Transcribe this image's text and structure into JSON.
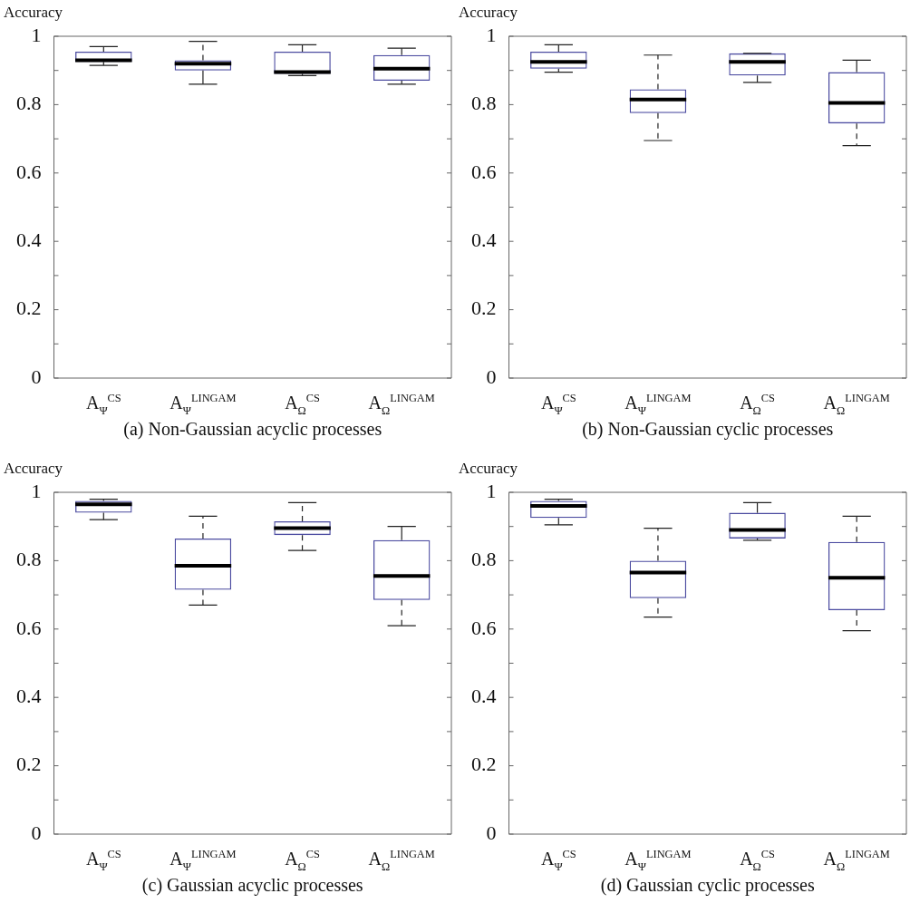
{
  "chart_data": [
    {
      "type": "box",
      "ylabel": "Accuracy",
      "xlabel": "(a) Non-Gaussian acyclic processes",
      "categories": [
        "A$_{Ψ}$$^{CS}$",
        "A$_{Ψ}$$^{LINGAM}$",
        "A$_{Ω}$$^{CS}$",
        "A$_{Ω}$$^{LINGAM}$"
      ],
      "color": "#4b4ba0",
      "ylim": [
        0,
        1
      ],
      "yticks": [
        0,
        {
          "value": 0.1,
          "label": null
        },
        0.2,
        {
          "value": 0.3,
          "label": null
        },
        0.4,
        {
          "value": 0.5,
          "label": null
        },
        0.6,
        {
          "value": 0.7,
          "label": null
        },
        0.8,
        {
          "value": 0.9,
          "label": null
        },
        1
      ],
      "grid": false,
      "boxes": [
        {
          "low": 0.915,
          "q1": 0.925,
          "median": 0.93,
          "q3": 0.955,
          "high": 0.97
        },
        {
          "low": 0.86,
          "q1": 0.9,
          "median": 0.92,
          "q3": 0.93,
          "high": 0.985
        },
        {
          "low": 0.885,
          "q1": 0.89,
          "median": 0.895,
          "q3": 0.955,
          "high": 0.975
        },
        {
          "low": 0.86,
          "q1": 0.87,
          "median": 0.905,
          "q3": 0.945,
          "high": 0.965
        }
      ]
    },
    {
      "type": "box",
      "ylabel": "Accuracy",
      "xlabel": "(b) Non-Gaussian cyclic processes",
      "categories": [
        "A$_{Ψ}$$^{CS}$",
        "A$_{Ψ}$$^{LINGAM}$",
        "A$_{Ω}$$^{CS}$",
        "A$_{Ω}$$^{LINGAM}$"
      ],
      "color": "#4b4ba0",
      "ylim": [
        0,
        1
      ],
      "yticks": [
        0,
        {
          "value": 0.1,
          "label": null
        },
        0.2,
        {
          "value": 0.3,
          "label": null
        },
        0.4,
        {
          "value": 0.5,
          "label": null
        },
        0.6,
        {
          "value": 0.7,
          "label": null
        },
        0.8,
        {
          "value": 0.9,
          "label": null
        },
        1
      ],
      "grid": false,
      "boxes": [
        {
          "low": 0.895,
          "q1": 0.905,
          "median": 0.925,
          "q3": 0.955,
          "high": 0.975
        },
        {
          "low": 0.695,
          "q1": 0.775,
          "median": 0.815,
          "q3": 0.845,
          "high": 0.945
        },
        {
          "low": 0.865,
          "q1": 0.885,
          "median": 0.925,
          "q3": 0.95,
          "high": 0.95
        },
        {
          "low": 0.68,
          "q1": 0.745,
          "median": 0.805,
          "q3": 0.895,
          "high": 0.93
        }
      ]
    },
    {
      "type": "box",
      "ylabel": "Accuracy",
      "xlabel": "(c) Gaussian acyclic processes",
      "categories": [
        "A$_{Ψ}$$^{CS}$",
        "A$_{Ψ}$$^{LINGAM}$",
        "A$_{Ω}$$^{CS}$",
        "A$_{Ω}$$^{LINGAM}$"
      ],
      "color": "#4b4ba0",
      "ylim": [
        0,
        1
      ],
      "yticks": [
        0,
        {
          "value": 0.1,
          "label": null
        },
        0.2,
        {
          "value": 0.3,
          "label": null
        },
        0.4,
        {
          "value": 0.5,
          "label": null
        },
        0.6,
        {
          "value": 0.7,
          "label": null
        },
        0.8,
        {
          "value": 0.9,
          "label": null
        },
        1
      ],
      "grid": false,
      "boxes": [
        {
          "low": 0.92,
          "q1": 0.94,
          "median": 0.965,
          "q3": 0.975,
          "high": 0.98
        },
        {
          "low": 0.67,
          "q1": 0.715,
          "median": 0.785,
          "q3": 0.865,
          "high": 0.93
        },
        {
          "low": 0.83,
          "q1": 0.875,
          "median": 0.895,
          "q3": 0.915,
          "high": 0.97
        },
        {
          "low": 0.61,
          "q1": 0.685,
          "median": 0.755,
          "q3": 0.86,
          "high": 0.9
        }
      ]
    },
    {
      "type": "box",
      "ylabel": "Accuracy",
      "xlabel": "(d) Gaussian cyclic processes",
      "categories": [
        "A$_{Ψ}$$^{CS}$",
        "A$_{Ψ}$$^{LINGAM}$",
        "A$_{Ω}$$^{CS}$",
        "A$_{Ω}$$^{LINGAM}$"
      ],
      "color": "#4b4ba0",
      "ylim": [
        0,
        1
      ],
      "yticks": [
        0,
        {
          "value": 0.1,
          "label": null
        },
        0.2,
        {
          "value": 0.3,
          "label": null
        },
        0.4,
        {
          "value": 0.5,
          "label": null
        },
        0.6,
        {
          "value": 0.7,
          "label": null
        },
        0.8,
        {
          "value": 0.9,
          "label": null
        },
        1
      ],
      "grid": false,
      "boxes": [
        {
          "low": 0.905,
          "q1": 0.925,
          "median": 0.96,
          "q3": 0.975,
          "high": 0.98
        },
        {
          "low": 0.635,
          "q1": 0.69,
          "median": 0.765,
          "q3": 0.8,
          "high": 0.895
        },
        {
          "low": 0.86,
          "q1": 0.865,
          "median": 0.89,
          "q3": 0.94,
          "high": 0.97
        },
        {
          "low": 0.595,
          "q1": 0.655,
          "median": 0.75,
          "q3": 0.855,
          "high": 0.93
        }
      ]
    }
  ]
}
